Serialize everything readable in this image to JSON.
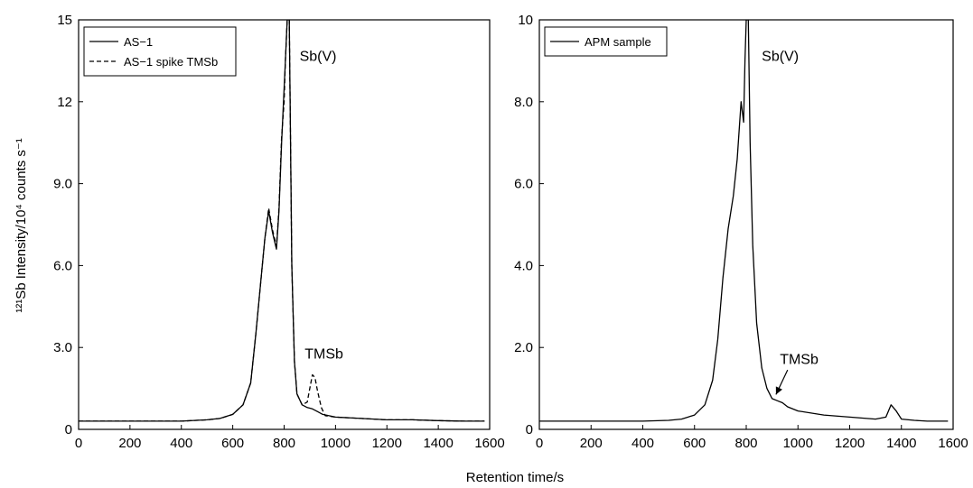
{
  "figure": {
    "ylabel": "¹²¹Sb Intensity/10⁴ counts s⁻¹",
    "xlabel": "Retention time/s"
  },
  "chart_data": [
    {
      "type": "line",
      "panel": "left",
      "xlim": [
        0,
        1600
      ],
      "ylim": [
        0,
        15
      ],
      "x_ticks": [
        0,
        200,
        400,
        600,
        800,
        1000,
        1200,
        1400,
        1600
      ],
      "x_tick_labels": [
        "0",
        "200",
        "400",
        "600",
        "800",
        "1000",
        "1200",
        "1400",
        "1600"
      ],
      "y_ticks": [
        0,
        3,
        6,
        9,
        12,
        15
      ],
      "y_tick_labels": [
        "0",
        "3.0",
        "6.0",
        "9.0",
        "12",
        "15"
      ],
      "legend_position": "top-left",
      "series": [
        {
          "name": "AS−1",
          "style": "solid",
          "x": [
            0,
            100,
            200,
            300,
            400,
            500,
            550,
            600,
            640,
            670,
            690,
            710,
            725,
            740,
            755,
            770,
            780,
            790,
            800,
            805,
            812,
            820,
            830,
            840,
            850,
            870,
            890,
            910,
            930,
            950,
            1000,
            1100,
            1200,
            1300,
            1400,
            1500,
            1580
          ],
          "y": [
            0.3,
            0.3,
            0.3,
            0.3,
            0.3,
            0.35,
            0.4,
            0.55,
            0.9,
            1.7,
            3.5,
            5.5,
            7.0,
            8.0,
            7.2,
            6.6,
            8.0,
            10.5,
            12.5,
            13.5,
            15,
            15,
            6.0,
            2.5,
            1.3,
            0.9,
            0.8,
            0.75,
            0.65,
            0.55,
            0.45,
            0.4,
            0.35,
            0.35,
            0.32,
            0.3,
            0.3
          ]
        },
        {
          "name": "AS−1 spike TMSb",
          "style": "dashed",
          "x": [
            0,
            100,
            200,
            300,
            400,
            500,
            550,
            600,
            640,
            670,
            690,
            710,
            725,
            740,
            755,
            770,
            780,
            790,
            800,
            805,
            812,
            820,
            830,
            840,
            850,
            870,
            890,
            900,
            910,
            920,
            930,
            945,
            960,
            1000,
            1100,
            1200,
            1300,
            1400,
            1500,
            1580
          ],
          "y": [
            0.3,
            0.3,
            0.3,
            0.3,
            0.3,
            0.35,
            0.4,
            0.55,
            0.9,
            1.7,
            3.5,
            5.5,
            7.0,
            8.1,
            7.3,
            6.7,
            8.1,
            10.7,
            12.0,
            13.5,
            15,
            15,
            6.0,
            2.5,
            1.3,
            0.9,
            1.0,
            1.5,
            2.0,
            1.9,
            1.4,
            0.8,
            0.5,
            0.45,
            0.4,
            0.35,
            0.35,
            0.32,
            0.3,
            0.3
          ]
        }
      ],
      "annotations": [
        {
          "text": "Sb(V)",
          "x": 860,
          "y": 13.5
        },
        {
          "text": "TMSb",
          "x": 880,
          "y": 2.6
        }
      ]
    },
    {
      "type": "line",
      "panel": "right",
      "xlim": [
        0,
        1600
      ],
      "ylim": [
        0,
        10
      ],
      "x_ticks": [
        0,
        200,
        400,
        600,
        800,
        1000,
        1200,
        1400,
        1600
      ],
      "x_tick_labels": [
        "0",
        "200",
        "400",
        "600",
        "800",
        "1000",
        "1200",
        "1400",
        "1600"
      ],
      "y_ticks": [
        0,
        2,
        4,
        6,
        8,
        10
      ],
      "y_tick_labels": [
        "0",
        "2.0",
        "4.0",
        "6.0",
        "8.0",
        "10"
      ],
      "legend_position": "top-left",
      "series": [
        {
          "name": "APM sample",
          "style": "solid",
          "x": [
            0,
            100,
            200,
            300,
            400,
            500,
            550,
            600,
            640,
            670,
            690,
            710,
            730,
            750,
            765,
            780,
            790,
            795,
            800,
            808,
            815,
            825,
            840,
            860,
            880,
            900,
            920,
            940,
            960,
            1000,
            1100,
            1200,
            1300,
            1340,
            1360,
            1380,
            1400,
            1450,
            1500,
            1580
          ],
          "y": [
            0.2,
            0.2,
            0.2,
            0.2,
            0.2,
            0.22,
            0.25,
            0.35,
            0.6,
            1.2,
            2.2,
            3.7,
            4.9,
            5.7,
            6.6,
            8.0,
            7.5,
            9.0,
            10,
            10,
            7.0,
            4.5,
            2.6,
            1.5,
            1.0,
            0.75,
            0.7,
            0.65,
            0.55,
            0.45,
            0.35,
            0.3,
            0.25,
            0.3,
            0.6,
            0.45,
            0.25,
            0.22,
            0.2,
            0.2
          ]
        }
      ],
      "annotations": [
        {
          "text": "Sb(V)",
          "x": 860,
          "y": 9.0
        },
        {
          "text": "TMSb",
          "x": 930,
          "y": 1.6
        }
      ]
    }
  ]
}
